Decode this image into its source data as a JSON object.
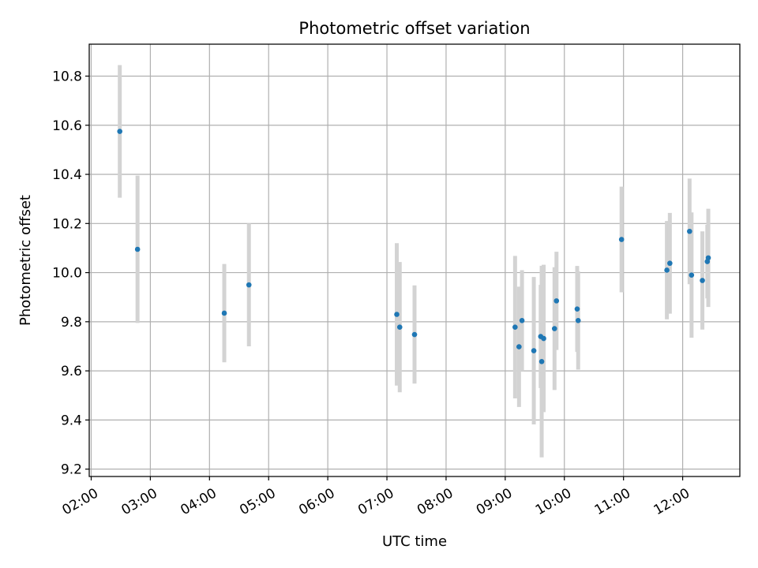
{
  "chart_data": {
    "type": "scatter",
    "title": "Photometric offset variation",
    "xlabel": "UTC time",
    "ylabel": "Photometric offset",
    "x_axis_kind": "time",
    "xlim": [
      "01:58",
      "12:58"
    ],
    "ylim": [
      9.17,
      10.93
    ],
    "x_ticks": [
      "02:00",
      "03:00",
      "04:00",
      "05:00",
      "06:00",
      "07:00",
      "08:00",
      "09:00",
      "10:00",
      "11:00",
      "12:00"
    ],
    "y_ticks": [
      "9.2",
      "9.4",
      "9.6",
      "9.8",
      "10.0",
      "10.2",
      "10.4",
      "10.6",
      "10.8"
    ],
    "grid": true,
    "marker_color": "#1f77b4",
    "errorbar_color": "#d3d3d3",
    "points": [
      {
        "x": "02:29",
        "y": 10.575,
        "err": 0.27
      },
      {
        "x": "02:47",
        "y": 10.095,
        "err": 0.3
      },
      {
        "x": "04:15",
        "y": 9.835,
        "err": 0.2
      },
      {
        "x": "04:40",
        "y": 9.95,
        "err": 0.25
      },
      {
        "x": "07:10",
        "y": 9.83,
        "err": 0.29
      },
      {
        "x": "07:13",
        "y": 9.778,
        "err": 0.265
      },
      {
        "x": "07:28",
        "y": 9.748,
        "err": 0.2
      },
      {
        "x": "09:10",
        "y": 9.778,
        "err": 0.29
      },
      {
        "x": "09:14",
        "y": 9.698,
        "err": 0.245
      },
      {
        "x": "09:17",
        "y": 9.805,
        "err": 0.205
      },
      {
        "x": "09:29",
        "y": 9.682,
        "err": 0.3
      },
      {
        "x": "09:36",
        "y": 9.74,
        "err": 0.21
      },
      {
        "x": "09:37",
        "y": 9.638,
        "err": 0.39
      },
      {
        "x": "09:39",
        "y": 9.732,
        "err": 0.3
      },
      {
        "x": "09:50",
        "y": 9.772,
        "err": 0.25
      },
      {
        "x": "09:52",
        "y": 9.885,
        "err": 0.2
      },
      {
        "x": "10:13",
        "y": 9.852,
        "err": 0.175
      },
      {
        "x": "10:14",
        "y": 9.805,
        "err": 0.2
      },
      {
        "x": "10:58",
        "y": 10.135,
        "err": 0.215
      },
      {
        "x": "11:44",
        "y": 10.01,
        "err": 0.2
      },
      {
        "x": "11:47",
        "y": 10.038,
        "err": 0.205
      },
      {
        "x": "12:07",
        "y": 10.168,
        "err": 0.215
      },
      {
        "x": "12:09",
        "y": 9.99,
        "err": 0.255
      },
      {
        "x": "12:20",
        "y": 9.968,
        "err": 0.2
      },
      {
        "x": "12:25",
        "y": 10.045,
        "err": 0.15
      },
      {
        "x": "12:26",
        "y": 10.06,
        "err": 0.2
      }
    ]
  }
}
